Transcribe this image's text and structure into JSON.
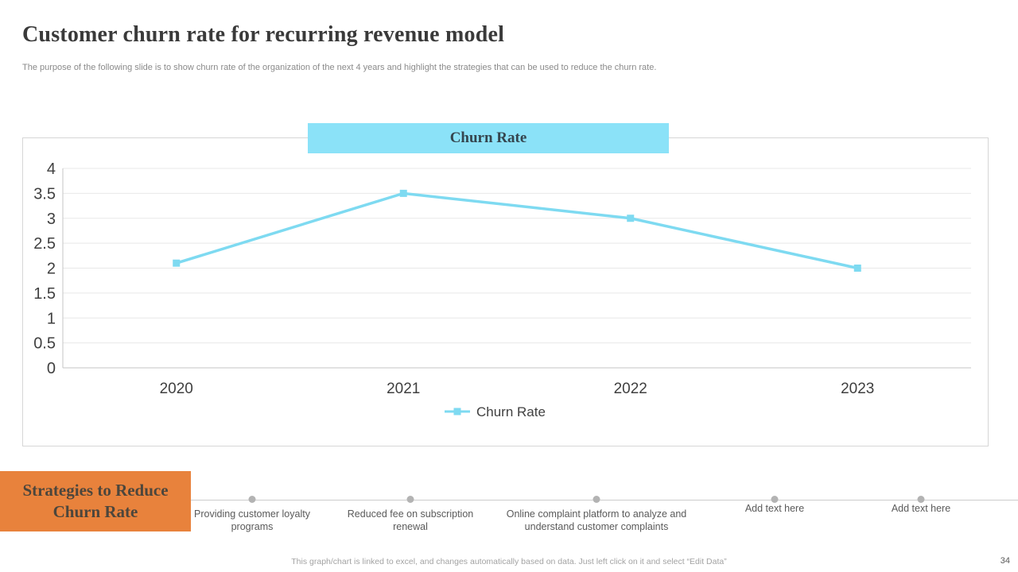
{
  "slide": {
    "title": "Customer churn rate for recurring revenue model",
    "subtitle": "The purpose of the following slide is to show churn rate of the organization of the next 4 years and highlight the strategies that can be used to reduce the churn rate.",
    "footer_note": "This graph/chart is linked to excel, and changes automatically based on data. Just left click on it and select “Edit Data”",
    "page_number": "34"
  },
  "chart_banner": {
    "label": "Churn Rate",
    "bg_color": "#8be2f8"
  },
  "chart_data": {
    "type": "line",
    "title": "Churn Rate",
    "categories": [
      "2020",
      "2021",
      "2022",
      "2023"
    ],
    "series": [
      {
        "name": "Churn Rate",
        "values": [
          2.1,
          3.5,
          3,
          2
        ],
        "color": "#7edaf1",
        "marker": "square"
      }
    ],
    "ylim": [
      0,
      4
    ],
    "ytick_step": 0.5,
    "grid": true,
    "legend_position": "bottom",
    "legend_label": "Churn Rate",
    "axis_color": "#c6c6c6",
    "grid_color": "#e8e8e8",
    "label_color": "#404040"
  },
  "strategies": {
    "heading": "Strategies to Reduce Churn Rate",
    "bg_color": "#e8823c",
    "items": [
      "Providing customer loyalty programs",
      "Reduced fee on subscription renewal",
      "Online complaint platform to analyze and understand customer complaints",
      "Add text here",
      "Add text here"
    ]
  }
}
